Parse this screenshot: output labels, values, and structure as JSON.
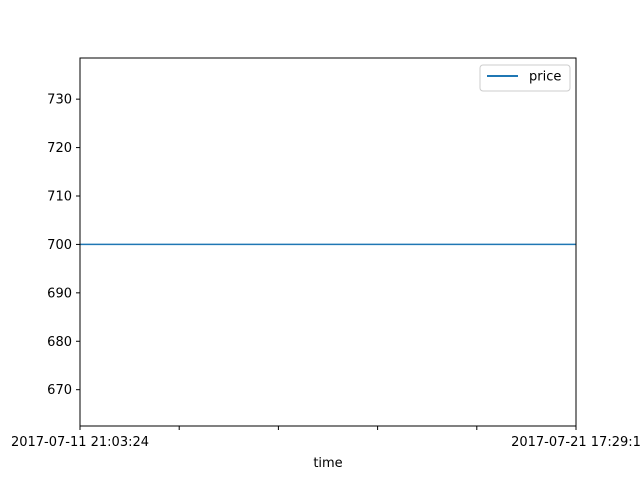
{
  "chart_data": {
    "type": "line",
    "title": "",
    "xlabel": "time",
    "ylabel": "",
    "x": [
      "2017-07-11 21:03:24",
      "2017-07-21 17:29:1"
    ],
    "x_tick_labels": [
      "2017-07-11 21:03:24",
      "",
      "",
      "",
      "",
      "2017-07-21 17:29:1"
    ],
    "y_ticks": [
      670,
      680,
      690,
      700,
      710,
      720,
      730
    ],
    "ylim": [
      662.5,
      738.5
    ],
    "series": [
      {
        "name": "price",
        "values": [
          700,
          700
        ],
        "color": "#1f77b4"
      }
    ],
    "legend": {
      "position": "top-right"
    },
    "grid": false
  }
}
